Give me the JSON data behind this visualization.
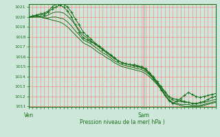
{
  "title": "Pression niveau de la mer( hPa )",
  "xlabels": [
    "Ven",
    "Sam"
  ],
  "ymin": 1011,
  "ymax": 1021,
  "yticks": [
    1011,
    1012,
    1013,
    1014,
    1015,
    1016,
    1017,
    1018,
    1019,
    1020,
    1021
  ],
  "bg_color": "#cde8da",
  "grid_color_major": "#ff8888",
  "grid_color_minor": "#ffbbbb",
  "line_color": "#1a6e1a",
  "vline_color": "#888888",
  "vline_x": 0.615,
  "n_points": 49,
  "series": [
    [
      1020.0,
      1020.1,
      1020.2,
      1020.3,
      1020.2,
      1020.5,
      1020.8,
      1021.0,
      1021.2,
      1021.3,
      1021.0,
      1020.5,
      1019.8,
      1019.2,
      1018.5,
      1018.1,
      1017.8,
      1017.4,
      1017.1,
      1016.8,
      1016.5,
      1016.2,
      1015.9,
      1015.6,
      1015.4,
      1015.3,
      1015.2,
      1015.2,
      1015.1,
      1015.0,
      1014.8,
      1014.4,
      1014.0,
      1013.5,
      1013.0,
      1012.5,
      1012.0,
      1011.8,
      1011.7,
      1011.6,
      1011.5,
      1011.4,
      1011.3,
      1011.3,
      1011.4,
      1011.5,
      1011.7,
      1011.9,
      1012.0
    ],
    [
      1020.0,
      1020.0,
      1020.1,
      1020.1,
      1020.0,
      1020.2,
      1020.4,
      1020.5,
      1020.5,
      1020.4,
      1020.1,
      1019.7,
      1019.2,
      1018.7,
      1018.2,
      1017.9,
      1017.6,
      1017.3,
      1017.0,
      1016.7,
      1016.4,
      1016.1,
      1015.8,
      1015.6,
      1015.4,
      1015.3,
      1015.2,
      1015.1,
      1015.0,
      1014.9,
      1014.7,
      1014.3,
      1013.9,
      1013.4,
      1012.9,
      1012.4,
      1011.9,
      1011.6,
      1011.5,
      1011.5,
      1011.4,
      1011.4,
      1011.3,
      1011.3,
      1011.3,
      1011.4,
      1011.5,
      1011.6,
      1011.7
    ],
    [
      1020.0,
      1020.0,
      1020.0,
      1020.0,
      1019.9,
      1019.9,
      1020.0,
      1020.0,
      1019.9,
      1019.8,
      1019.5,
      1019.1,
      1018.6,
      1018.2,
      1017.7,
      1017.5,
      1017.3,
      1017.0,
      1016.7,
      1016.4,
      1016.2,
      1015.9,
      1015.6,
      1015.4,
      1015.2,
      1015.1,
      1015.0,
      1014.9,
      1014.8,
      1014.7,
      1014.5,
      1014.2,
      1013.8,
      1013.3,
      1012.8,
      1012.2,
      1011.7,
      1011.4,
      1011.3,
      1011.2,
      1011.2,
      1011.2,
      1011.1,
      1011.1,
      1011.1,
      1011.2,
      1011.3,
      1011.4,
      1011.5
    ],
    [
      1020.0,
      1020.0,
      1020.0,
      1020.0,
      1019.9,
      1019.8,
      1019.7,
      1019.6,
      1019.5,
      1019.3,
      1019.0,
      1018.6,
      1018.2,
      1017.8,
      1017.4,
      1017.2,
      1017.0,
      1016.7,
      1016.4,
      1016.2,
      1015.9,
      1015.7,
      1015.4,
      1015.2,
      1015.0,
      1014.9,
      1014.8,
      1014.7,
      1014.6,
      1014.5,
      1014.3,
      1014.0,
      1013.6,
      1013.2,
      1012.7,
      1012.1,
      1011.6,
      1011.3,
      1011.2,
      1011.1,
      1011.0,
      1011.0,
      1011.0,
      1011.0,
      1011.0,
      1011.1,
      1011.2,
      1011.3,
      1011.4
    ],
    [
      1020.0,
      1020.1,
      1020.2,
      1020.3,
      1020.4,
      1020.6,
      1021.0,
      1021.3,
      1021.2,
      1021.0,
      1020.6,
      1020.0,
      1019.2,
      1018.5,
      1017.9,
      1017.7,
      1017.5,
      1017.3,
      1017.0,
      1016.7,
      1016.5,
      1016.2,
      1015.9,
      1015.6,
      1015.4,
      1015.3,
      1015.2,
      1015.1,
      1015.0,
      1014.9,
      1014.7,
      1014.3,
      1013.8,
      1013.3,
      1012.7,
      1012.1,
      1011.6,
      1011.3,
      1011.5,
      1011.8,
      1012.1,
      1012.4,
      1012.2,
      1012.0,
      1011.9,
      1012.0,
      1012.1,
      1012.2,
      1012.3
    ]
  ]
}
